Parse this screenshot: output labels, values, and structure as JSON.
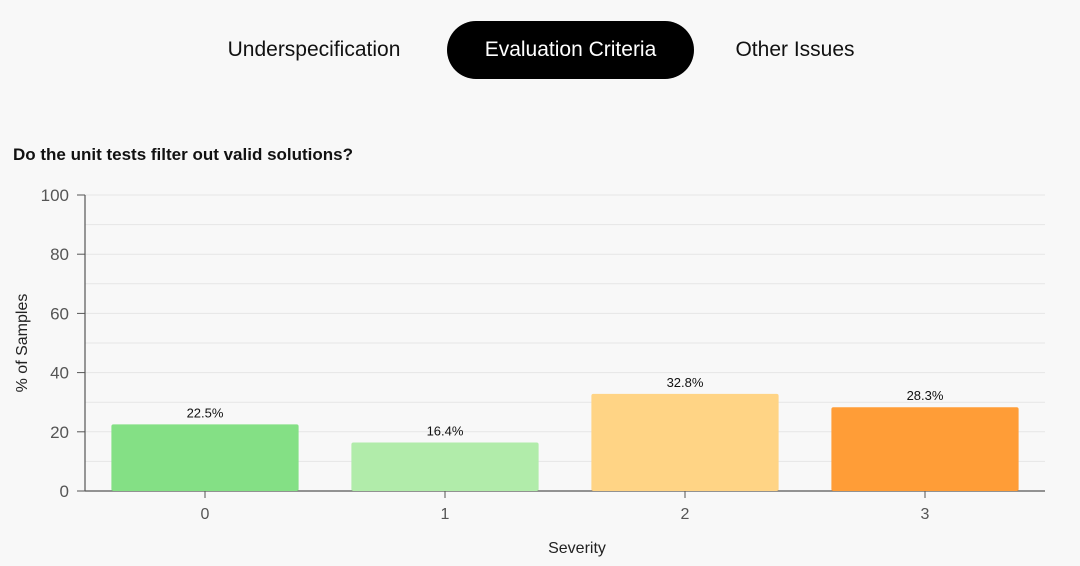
{
  "tabs": [
    {
      "label": "Underspecification",
      "active": false
    },
    {
      "label": "Evaluation Criteria",
      "active": true
    },
    {
      "label": "Other Issues",
      "active": false
    }
  ],
  "chart_data": {
    "type": "bar",
    "title": "Do the unit tests filter out valid solutions?",
    "xlabel": "Severity",
    "ylabel": "% of Samples",
    "categories": [
      "0",
      "1",
      "2",
      "3"
    ],
    "values": [
      22.5,
      16.4,
      32.8,
      28.3
    ],
    "data_labels": [
      "22.5%",
      "16.4%",
      "32.8%",
      "28.3%"
    ],
    "colors": [
      "#84e085",
      "#b1ecaa",
      "#ffd485",
      "#ff9d37"
    ],
    "ylim": [
      0,
      100
    ],
    "yticks": [
      0,
      20,
      40,
      60,
      80,
      100
    ],
    "grid": true,
    "legend": false
  }
}
